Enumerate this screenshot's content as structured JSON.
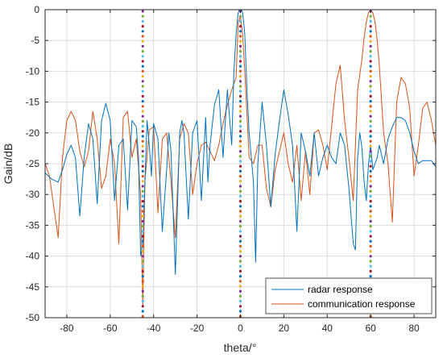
{
  "chart_data": {
    "type": "line",
    "xlabel": "theta/°",
    "ylabel": "Gain/dB",
    "xlim": [
      -90,
      90
    ],
    "ylim": [
      -50,
      0
    ],
    "xticks": [
      -80,
      -60,
      -40,
      -20,
      0,
      20,
      40,
      60,
      80
    ],
    "yticks": [
      0,
      -5,
      -10,
      -15,
      -20,
      -25,
      -30,
      -35,
      -40,
      -45,
      -50
    ],
    "grid": true,
    "legend_position": "bottom-right",
    "series": [
      {
        "name": "radar response",
        "color": "#0072BD",
        "x": [
          -90,
          -87,
          -84,
          -82,
          -80,
          -78,
          -76,
          -74,
          -72,
          -70,
          -68,
          -66,
          -64,
          -62,
          -60,
          -58,
          -56,
          -54,
          -52,
          -50,
          -48,
          -47,
          -46,
          -45,
          -44,
          -43,
          -42,
          -41,
          -40,
          -38,
          -36,
          -34,
          -33,
          -32,
          -30,
          -28,
          -27,
          -26,
          -24,
          -22,
          -20,
          -18,
          -16,
          -15,
          -14,
          -12,
          -10,
          -8,
          -6,
          -4,
          -3,
          -2,
          -1.5,
          -1,
          -0.5,
          0,
          0.5,
          1,
          1.5,
          2,
          3,
          4,
          6,
          7,
          8,
          10,
          12,
          14,
          16,
          18,
          20,
          22,
          24,
          26,
          28,
          30,
          32,
          34,
          36,
          38,
          40,
          42,
          44,
          46,
          48,
          50,
          52,
          53,
          54,
          55,
          56,
          57,
          58,
          59,
          60,
          61,
          62,
          63,
          64,
          66,
          68,
          70,
          72,
          74,
          76,
          78,
          80,
          82,
          84,
          86,
          88,
          90
        ],
        "values": [
          -26.5,
          -27.5,
          -28,
          -26,
          -23.5,
          -22,
          -24,
          -33.5,
          -24,
          -18.5,
          -21,
          -31.5,
          -18,
          -15.2,
          -18,
          -31,
          -22,
          -21,
          -32.5,
          -18,
          -19,
          -24,
          -40,
          -38,
          -28,
          -18,
          -22,
          -27,
          -18.5,
          -21,
          -36,
          -26,
          -20,
          -23,
          -43,
          -20,
          -18,
          -20,
          -34,
          -20,
          -18,
          -31,
          -17.5,
          -28,
          -22,
          -15.5,
          -13,
          -24,
          -13,
          -22,
          -10,
          -4,
          -2,
          -0.5,
          0,
          0,
          0,
          -0.5,
          -2,
          -4,
          -13,
          -20,
          -28,
          -41,
          -25,
          -15,
          -22,
          -32,
          -23.5,
          -18,
          -13,
          -17,
          -22,
          -36,
          -20,
          -23,
          -27,
          -20,
          -27,
          -24,
          -22,
          -24,
          -25,
          -20,
          -22,
          -29,
          -38,
          -39,
          -24,
          -20,
          -22.5,
          -28,
          -31,
          -25,
          -22,
          -26,
          -25,
          -24,
          -22,
          -25,
          -21,
          -19,
          -17.5,
          -17.5,
          -18,
          -20,
          -23,
          -25,
          -24.5,
          -24.5,
          -24.5,
          -25.5
        ]
      },
      {
        "name": "communication response",
        "color": "#D95319",
        "x": [
          -90,
          -88,
          -86,
          -84,
          -82,
          -80,
          -78,
          -76,
          -74,
          -72,
          -70,
          -68,
          -66,
          -64,
          -62,
          -60,
          -58,
          -56,
          -54,
          -52,
          -50,
          -48,
          -46,
          -45,
          -44,
          -42,
          -40,
          -38,
          -36,
          -34,
          -32,
          -30,
          -28,
          -26,
          -24,
          -22,
          -20,
          -18,
          -16,
          -14,
          -12,
          -10,
          -8,
          -6,
          -4,
          -2,
          -1,
          0,
          1,
          2,
          4,
          6,
          8,
          10,
          12,
          14,
          16,
          18,
          20,
          22,
          24,
          26,
          28,
          30,
          32,
          34,
          36,
          38,
          40,
          42,
          44,
          46,
          48,
          50,
          52,
          54,
          56,
          57,
          58,
          59,
          60,
          61,
          62,
          63,
          64,
          66,
          68,
          70,
          72,
          74,
          76,
          78,
          80,
          82,
          84,
          86,
          88,
          90
        ],
        "values": [
          -25,
          -27,
          -32,
          -37,
          -24,
          -18,
          -16.5,
          -18,
          -23,
          -25.5,
          -23,
          -16.5,
          -21,
          -29,
          -27,
          -21,
          -25,
          -38,
          -17.5,
          -16.5,
          -24,
          -21,
          -30,
          -48,
          -28,
          -19.5,
          -19,
          -33,
          -21,
          -20,
          -28,
          -37,
          -21,
          -18.5,
          -20,
          -30,
          -25,
          -22,
          -21.5,
          -23,
          -24.5,
          -22,
          -18.5,
          -15.5,
          -13,
          -11,
          -2,
          -1,
          -4,
          -10,
          -24,
          -25,
          -22,
          -22,
          -29,
          -32,
          -26,
          -23,
          -20,
          -25,
          -28,
          -22,
          -31,
          -23,
          -30,
          -20,
          -19.5,
          -22,
          -26,
          -19,
          -12,
          -9,
          -18,
          -24,
          -31,
          -13,
          -8,
          -4.5,
          -2,
          -0.5,
          0,
          -0.5,
          -2,
          -5,
          -9,
          -20,
          -25,
          -34.5,
          -15,
          -11,
          -12,
          -16,
          -27,
          -22,
          -16,
          -15,
          -18,
          -22
        ]
      }
    ],
    "markers": [
      {
        "x": -45,
        "colors": [
          "#7E2F8E",
          "#77AC30",
          "#4DBEEE",
          "#A2142F",
          "#0072BD",
          "#D95319",
          "#EDB120"
        ]
      },
      {
        "x": 0,
        "colors": [
          "#7E2F8E",
          "#77AC30",
          "#4DBEEE",
          "#A2142F",
          "#0072BD",
          "#D95319",
          "#EDB120"
        ]
      },
      {
        "x": 60,
        "colors": [
          "#7E2F8E",
          "#77AC30",
          "#4DBEEE",
          "#A2142F",
          "#0072BD",
          "#D95319",
          "#EDB120"
        ]
      }
    ]
  }
}
